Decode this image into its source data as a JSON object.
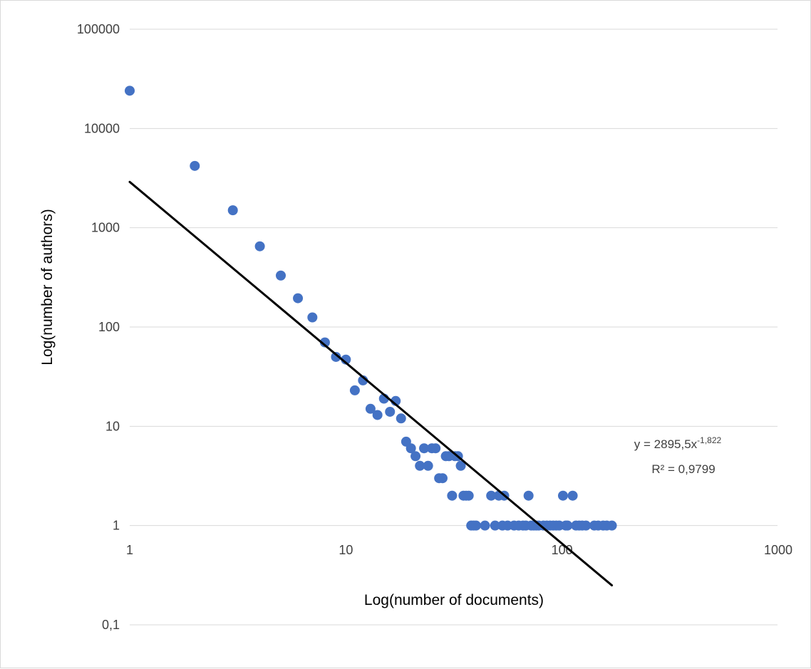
{
  "chart_data": {
    "type": "scatter",
    "title": "",
    "xlabel": "Log(number of documents)",
    "ylabel": "Log(number of authors)",
    "x_scale": "log",
    "y_scale": "log",
    "xlim": [
      1,
      1000
    ],
    "ylim": [
      0.1,
      100000
    ],
    "x_ticks": [
      {
        "value": 1,
        "label": "1"
      },
      {
        "value": 10,
        "label": "10"
      },
      {
        "value": 100,
        "label": "100"
      },
      {
        "value": 1000,
        "label": "1000"
      }
    ],
    "y_ticks": [
      {
        "value": 100000,
        "label": "100000"
      },
      {
        "value": 10000,
        "label": "10000"
      },
      {
        "value": 1000,
        "label": "1000"
      },
      {
        "value": 100,
        "label": "100"
      },
      {
        "value": 10,
        "label": "10"
      },
      {
        "value": 1,
        "label": "1"
      },
      {
        "value": 0.1,
        "label": "0,1"
      }
    ],
    "grid": "horizontal",
    "legend": "none",
    "colors": {
      "points": "#4472c4",
      "trendline": "#000000",
      "grid": "#d9d9d9",
      "ticks": "#404040"
    },
    "series": [
      {
        "x": [
          1,
          2,
          3,
          4,
          5,
          6,
          7,
          8,
          9,
          10,
          11,
          12,
          13,
          14,
          15,
          16,
          17,
          18,
          19,
          20,
          21,
          22,
          23,
          24,
          25,
          26,
          27,
          28,
          29,
          30,
          31,
          32,
          33,
          34,
          35,
          36,
          37,
          38,
          39,
          40,
          44,
          47,
          49,
          51,
          53,
          54,
          56,
          60,
          63,
          66,
          68,
          70,
          72,
          74,
          76,
          78,
          82,
          85,
          88,
          91,
          94,
          97,
          101,
          104,
          106,
          112,
          116,
          120,
          124,
          129,
          141,
          147,
          155,
          161,
          170
        ],
        "y": [
          24000,
          4200,
          1500,
          650,
          330,
          195,
          125,
          70,
          50,
          47,
          23,
          29,
          15,
          13,
          19,
          14,
          18,
          12,
          7,
          6,
          5,
          4,
          6,
          4,
          6,
          6,
          3,
          3,
          5,
          5,
          2,
          5,
          5,
          4,
          2,
          2,
          2,
          1,
          1,
          1,
          1,
          2,
          1,
          2,
          1,
          2,
          1,
          1,
          1,
          1,
          1,
          2,
          1,
          1,
          1,
          1,
          1,
          1,
          1,
          1,
          1,
          1,
          2,
          1,
          1,
          2,
          1,
          1,
          1,
          1,
          1,
          1,
          1,
          1,
          1
        ]
      }
    ],
    "trendline": {
      "type": "power",
      "a": 2895.5,
      "b": -1.822,
      "x_range": [
        1,
        170
      ],
      "equation_prefix": "y = 2895,5x",
      "equation_exponent": "-1,822",
      "r_squared": "R² = 0,9799"
    }
  }
}
